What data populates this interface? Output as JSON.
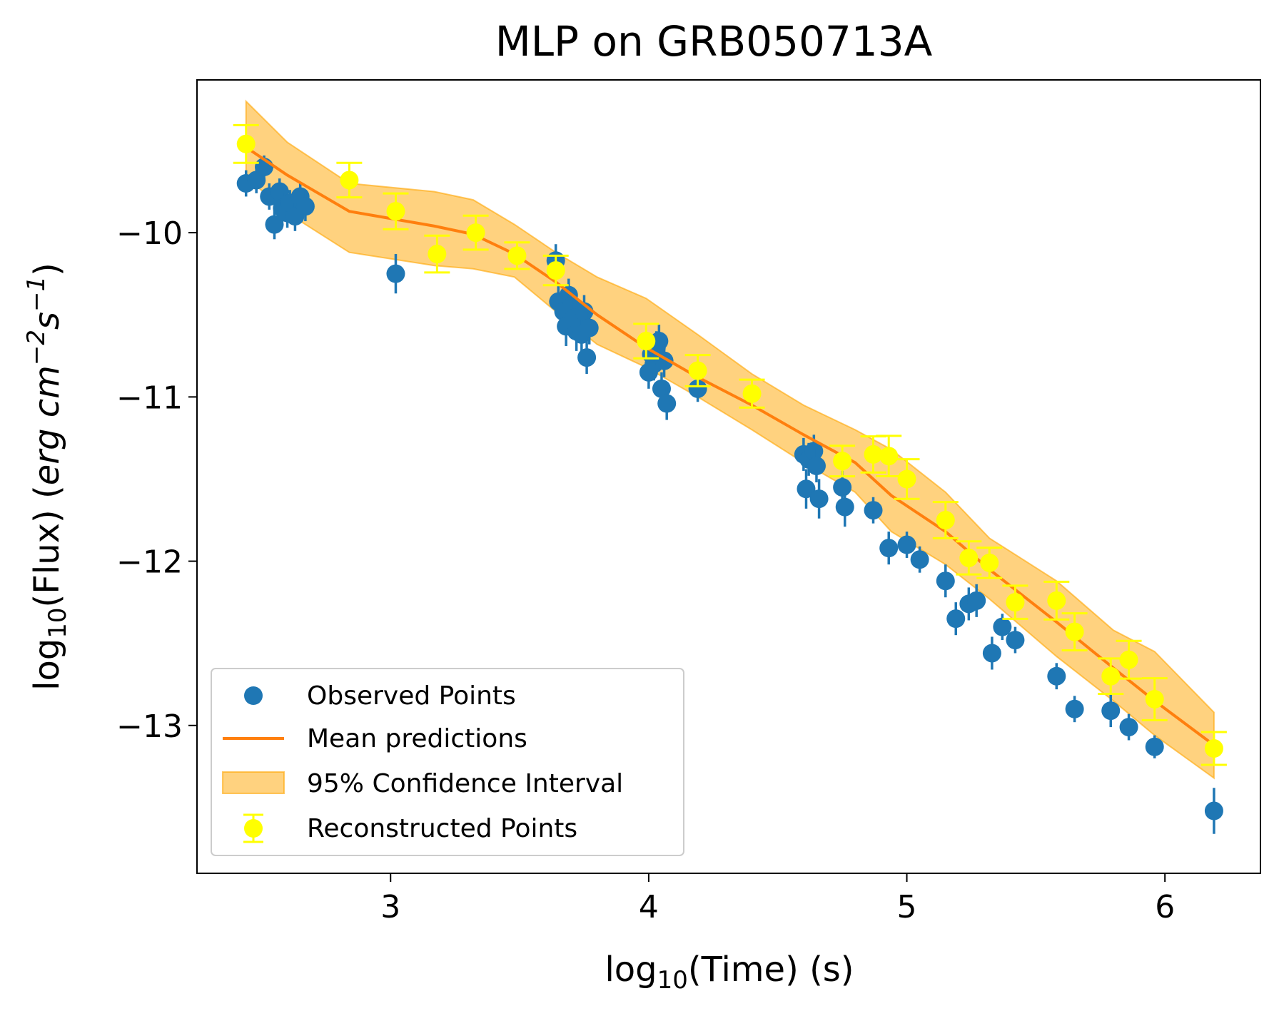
{
  "chart_data": {
    "type": "scatter",
    "title": "MLP on GRB050713A",
    "xlabel": "log10(Time) (s)",
    "ylabel": "log10(Flux) (erg cm^-2 s^-1)",
    "xlim": [
      2.25,
      6.37
    ],
    "ylim": [
      -13.9,
      -9.07
    ],
    "xticks": [
      3,
      4,
      5,
      6
    ],
    "yticks": [
      -10,
      -11,
      -12,
      -13
    ],
    "xtick_labels": [
      "3",
      "4",
      "5",
      "6"
    ],
    "ytick_labels": [
      "−10",
      "−11",
      "−12",
      "−13"
    ],
    "grid": false,
    "legend_position": "lower-left",
    "colors": {
      "observed": "#1f77b4",
      "mean": "#ff7f0e",
      "band_fill": "#ffa500",
      "reconstructed": "#ffff00"
    },
    "series": [
      {
        "name": "Observed Points",
        "kind": "errorbar",
        "x": [
          2.44,
          2.48,
          2.51,
          2.53,
          2.55,
          2.57,
          2.58,
          2.6,
          2.61,
          2.63,
          2.65,
          2.67,
          3.02,
          3.64,
          3.65,
          3.67,
          3.68,
          3.69,
          3.7,
          3.71,
          3.72,
          3.73,
          3.74,
          3.75,
          3.76,
          3.77,
          4.0,
          4.01,
          4.02,
          4.03,
          4.04,
          4.05,
          4.06,
          4.07,
          4.19,
          4.6,
          4.61,
          4.62,
          4.64,
          4.65,
          4.66,
          4.75,
          4.76,
          4.87,
          4.93,
          5.0,
          5.05,
          5.15,
          5.19,
          5.24,
          5.27,
          5.33,
          5.37,
          5.42,
          5.58,
          5.65,
          5.79,
          5.86,
          5.96,
          6.19
        ],
        "y": [
          -9.7,
          -9.68,
          -9.6,
          -9.78,
          -9.95,
          -9.75,
          -9.85,
          -9.88,
          -9.82,
          -9.9,
          -9.78,
          -9.84,
          -10.25,
          -10.17,
          -10.42,
          -10.48,
          -10.57,
          -10.38,
          -10.45,
          -10.52,
          -10.6,
          -10.55,
          -10.62,
          -10.48,
          -10.76,
          -10.58,
          -10.85,
          -10.74,
          -10.8,
          -10.7,
          -10.66,
          -10.95,
          -10.78,
          -11.04,
          -10.95,
          -11.35,
          -11.56,
          -11.38,
          -11.33,
          -11.42,
          -11.62,
          -11.55,
          -11.67,
          -11.69,
          -11.92,
          -11.9,
          -11.99,
          -12.12,
          -12.35,
          -12.26,
          -12.24,
          -12.56,
          -12.4,
          -12.48,
          -12.7,
          -12.9,
          -12.91,
          -13.01,
          -13.13,
          -13.52
        ],
        "yerr": [
          0.08,
          0.08,
          0.07,
          0.08,
          0.09,
          0.08,
          0.09,
          0.09,
          0.08,
          0.09,
          0.08,
          0.09,
          0.12,
          0.1,
          0.1,
          0.1,
          0.12,
          0.1,
          0.1,
          0.11,
          0.12,
          0.11,
          0.12,
          0.1,
          0.1,
          0.1,
          0.1,
          0.1,
          0.1,
          0.1,
          0.1,
          0.1,
          0.1,
          0.1,
          0.08,
          0.1,
          0.12,
          0.1,
          0.1,
          0.1,
          0.12,
          0.1,
          0.12,
          0.08,
          0.1,
          0.08,
          0.08,
          0.1,
          0.1,
          0.1,
          0.1,
          0.1,
          0.08,
          0.08,
          0.08,
          0.08,
          0.1,
          0.08,
          0.07,
          0.14
        ]
      },
      {
        "name": "Mean predictions",
        "kind": "line",
        "x": [
          2.44,
          2.6,
          2.84,
          3.17,
          3.32,
          3.48,
          3.64,
          3.8,
          3.99,
          4.19,
          4.4,
          4.6,
          4.8,
          4.94,
          5.15,
          5.32,
          5.58,
          5.8,
          5.96,
          6.19
        ],
        "y": [
          -9.48,
          -9.65,
          -9.87,
          -9.96,
          -10.01,
          -10.13,
          -10.3,
          -10.5,
          -10.7,
          -10.88,
          -11.05,
          -11.23,
          -11.4,
          -11.6,
          -11.82,
          -12.05,
          -12.37,
          -12.65,
          -12.85,
          -13.12
        ]
      },
      {
        "name": "95% Confidence Interval",
        "kind": "band",
        "x": [
          2.44,
          2.6,
          2.84,
          3.17,
          3.32,
          3.48,
          3.64,
          3.8,
          3.99,
          4.19,
          4.4,
          4.6,
          4.8,
          4.94,
          5.15,
          5.32,
          5.58,
          5.8,
          5.96,
          6.19
        ],
        "lower": [
          -9.66,
          -9.88,
          -10.12,
          -10.2,
          -10.22,
          -10.27,
          -10.48,
          -10.68,
          -10.82,
          -11.0,
          -11.2,
          -11.4,
          -11.58,
          -11.82,
          -12.02,
          -12.23,
          -12.58,
          -12.85,
          -13.06,
          -13.32
        ],
        "upper": [
          -9.2,
          -9.45,
          -9.7,
          -9.75,
          -9.8,
          -9.95,
          -10.12,
          -10.27,
          -10.4,
          -10.62,
          -10.86,
          -11.05,
          -11.2,
          -11.32,
          -11.58,
          -11.86,
          -12.12,
          -12.42,
          -12.55,
          -12.92
        ]
      },
      {
        "name": "Reconstructed Points",
        "kind": "errorbar",
        "x": [
          2.44,
          2.84,
          3.02,
          3.18,
          3.33,
          3.49,
          3.64,
          3.99,
          4.19,
          4.4,
          4.75,
          4.87,
          4.93,
          5.0,
          5.15,
          5.24,
          5.32,
          5.42,
          5.58,
          5.65,
          5.79,
          5.86,
          5.96,
          6.19
        ],
        "y": [
          -9.46,
          -9.68,
          -9.87,
          -10.13,
          -10.0,
          -10.14,
          -10.23,
          -10.66,
          -10.84,
          -10.98,
          -11.39,
          -11.35,
          -11.36,
          -11.5,
          -11.75,
          -11.98,
          -12.01,
          -12.25,
          -12.24,
          -12.43,
          -12.7,
          -12.6,
          -12.84,
          -13.14
        ]
      }
    ]
  }
}
